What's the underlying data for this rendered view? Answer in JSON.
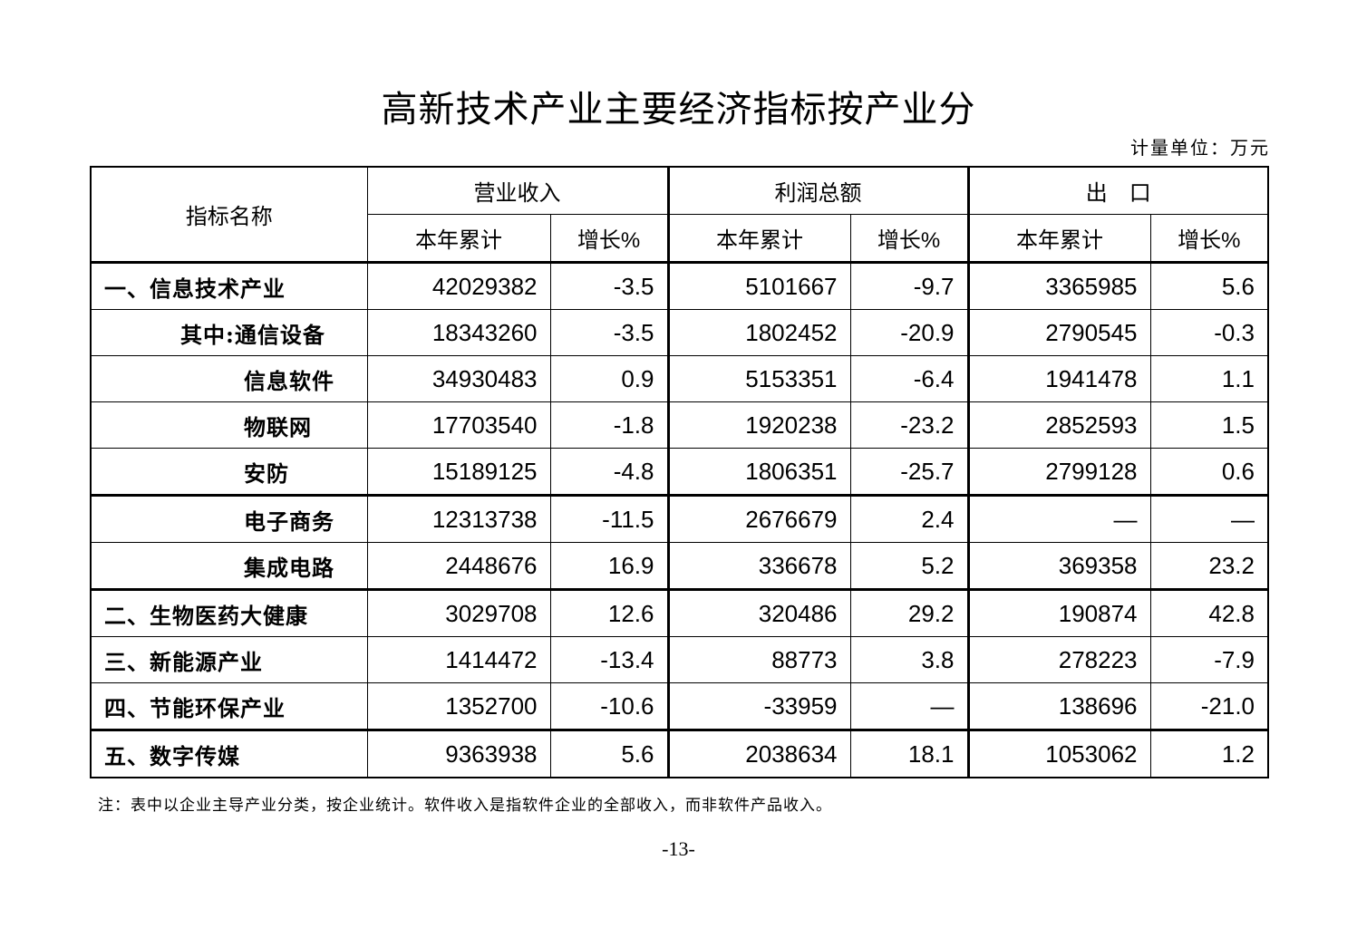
{
  "title": "高新技术产业主要经济指标按产业分",
  "unit": "计量单位：万元",
  "table": {
    "header": {
      "indicator": "指标名称",
      "groups": [
        "营业收入",
        "利润总额",
        "出　口"
      ],
      "subcols": [
        "本年累计",
        "增长%",
        "本年累计",
        "增长%",
        "本年累计",
        "增长%"
      ]
    },
    "rows": [
      {
        "name": "一、信息技术产业",
        "values": [
          "42029382",
          "-3.5",
          "5101667",
          "-9.7",
          "3365985",
          "5.6"
        ]
      },
      {
        "name": "其中:通信设备",
        "values": [
          "18343260",
          "-3.5",
          "1802452",
          "-20.9",
          "2790545",
          "-0.3"
        ]
      },
      {
        "name": "信息软件",
        "values": [
          "34930483",
          "0.9",
          "5153351",
          "-6.4",
          "1941478",
          "1.1"
        ]
      },
      {
        "name": "物联网",
        "values": [
          "17703540",
          "-1.8",
          "1920238",
          "-23.2",
          "2852593",
          "1.5"
        ]
      },
      {
        "name": "安防",
        "values": [
          "15189125",
          "-4.8",
          "1806351",
          "-25.7",
          "2799128",
          "0.6"
        ]
      },
      {
        "name": "电子商务",
        "values": [
          "12313738",
          "-11.5",
          "2676679",
          "2.4",
          "—",
          "—"
        ]
      },
      {
        "name": "集成电路",
        "values": [
          "2448676",
          "16.9",
          "336678",
          "5.2",
          "369358",
          "23.2"
        ]
      },
      {
        "name": "二、生物医药大健康",
        "values": [
          "3029708",
          "12.6",
          "320486",
          "29.2",
          "190874",
          "42.8"
        ]
      },
      {
        "name": "三、新能源产业",
        "values": [
          "1414472",
          "-13.4",
          "88773",
          "3.8",
          "278223",
          "-7.9"
        ]
      },
      {
        "name": "四、节能环保产业",
        "values": [
          "1352700",
          "-10.6",
          "-33959",
          "—",
          "138696",
          "-21.0"
        ]
      },
      {
        "name": "五、数字传媒",
        "values": [
          "9363938",
          "5.6",
          "2038634",
          "18.1",
          "1053062",
          "1.2"
        ]
      }
    ]
  },
  "note": "注：表中以企业主导产业分类，按企业统计。软件收入是指软件企业的全部收入，而非软件产品收入。",
  "page_number": "-13-"
}
